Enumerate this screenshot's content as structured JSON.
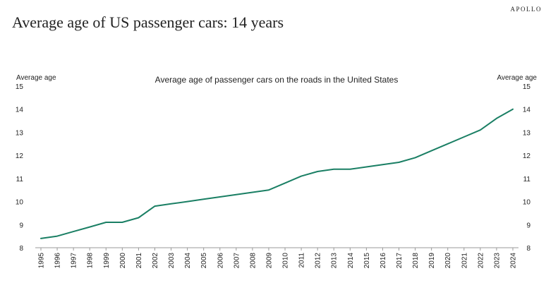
{
  "header": {
    "brand": "APOLLO",
    "headline": "Average age of US passenger cars: 14 years"
  },
  "colors": {
    "line": "#1a7f64",
    "axis": "#999999",
    "text": "#222222"
  },
  "chart_data": {
    "type": "line",
    "title": "Average age of passenger cars on the roads in the United States",
    "ylabel_left": "Average age",
    "ylabel_right": "Average age",
    "xlabel": "",
    "ylim": [
      8,
      15
    ],
    "yticks": [
      8,
      9,
      10,
      11,
      12,
      13,
      14,
      15
    ],
    "grid": false,
    "x": [
      "1995",
      "1996",
      "1997",
      "1998",
      "1999",
      "2000",
      "2001",
      "2002",
      "2003",
      "2004",
      "2005",
      "2006",
      "2007",
      "2008",
      "2009",
      "2010",
      "2011",
      "2012",
      "2013",
      "2014",
      "2015",
      "2016",
      "2017",
      "2018",
      "2019",
      "2020",
      "2021",
      "2022",
      "2023",
      "2024"
    ],
    "series": [
      {
        "name": "Average age",
        "values": [
          8.4,
          8.5,
          8.7,
          8.9,
          9.1,
          9.1,
          9.3,
          9.8,
          9.9,
          10.0,
          10.1,
          10.2,
          10.3,
          10.4,
          10.5,
          10.8,
          11.1,
          11.3,
          11.4,
          11.4,
          11.5,
          11.6,
          11.7,
          11.9,
          12.2,
          12.5,
          12.8,
          13.1,
          13.6,
          14.0
        ]
      }
    ]
  }
}
